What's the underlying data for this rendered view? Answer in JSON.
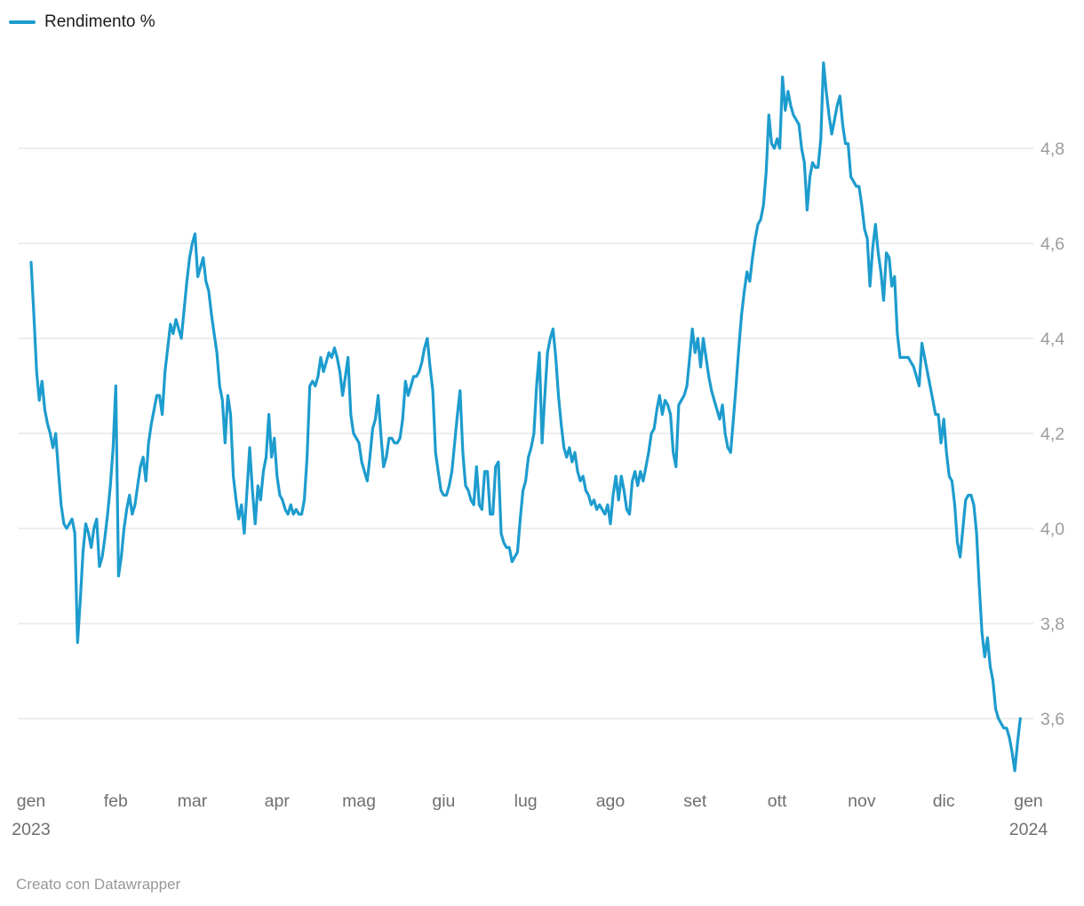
{
  "legend": {
    "label": "Rendimento %"
  },
  "footer": {
    "text": "Creato con Datawrapper"
  },
  "colors": {
    "line": "#1d9cce",
    "grid": "#e7e7e7",
    "y_label": "#9c9c9c",
    "x_label": "#6f6f6f",
    "footer_text": "#96989a",
    "legend_text": "#1a1a1a"
  },
  "chart_data": {
    "type": "line",
    "title": "",
    "series_name": "Rendimento %",
    "xlabel": "",
    "ylabel": "Rendimento %",
    "x_unit": "day of year, 2023 (1 = 1 gen 2023, 366 = 1 gen 2024)",
    "grid": "horizontal-only",
    "legend_position": "top-left",
    "ylim": [
      3.44,
      5.02
    ],
    "xlim": [
      1,
      373
    ],
    "y_ticks": [
      4.8,
      4.6,
      4.4,
      4.2,
      4.0,
      3.8,
      3.6
    ],
    "y_tick_labels": [
      "4,8",
      "4,6",
      "4,4",
      "4,2",
      "4,0",
      "3,8",
      "3,6"
    ],
    "x_ticks": [
      {
        "day": 1,
        "label": "gen",
        "sub": "2023"
      },
      {
        "day": 32,
        "label": "feb",
        "sub": ""
      },
      {
        "day": 60,
        "label": "mar",
        "sub": ""
      },
      {
        "day": 91,
        "label": "apr",
        "sub": ""
      },
      {
        "day": 121,
        "label": "mag",
        "sub": ""
      },
      {
        "day": 152,
        "label": "giu",
        "sub": ""
      },
      {
        "day": 182,
        "label": "lug",
        "sub": ""
      },
      {
        "day": 213,
        "label": "ago",
        "sub": ""
      },
      {
        "day": 244,
        "label": "set",
        "sub": ""
      },
      {
        "day": 274,
        "label": "ott",
        "sub": ""
      },
      {
        "day": 305,
        "label": "nov",
        "sub": ""
      },
      {
        "day": 335,
        "label": "dic",
        "sub": ""
      },
      {
        "day": 366,
        "label": "gen",
        "sub": "2024"
      }
    ],
    "points": [
      [
        1,
        4.56
      ],
      [
        2,
        4.45
      ],
      [
        3,
        4.33
      ],
      [
        4,
        4.27
      ],
      [
        5,
        4.31
      ],
      [
        6,
        4.25
      ],
      [
        7,
        4.22
      ],
      [
        8,
        4.2
      ],
      [
        9,
        4.17
      ],
      [
        10,
        4.2
      ],
      [
        11,
        4.12
      ],
      [
        12,
        4.05
      ],
      [
        13,
        4.01
      ],
      [
        14,
        4.0
      ],
      [
        15,
        4.01
      ],
      [
        16,
        4.02
      ],
      [
        17,
        3.99
      ],
      [
        18,
        3.76
      ],
      [
        19,
        3.85
      ],
      [
        20,
        3.95
      ],
      [
        21,
        4.01
      ],
      [
        22,
        3.99
      ],
      [
        23,
        3.96
      ],
      [
        24,
        4.0
      ],
      [
        25,
        4.02
      ],
      [
        26,
        3.92
      ],
      [
        27,
        3.94
      ],
      [
        28,
        3.98
      ],
      [
        29,
        4.03
      ],
      [
        30,
        4.09
      ],
      [
        31,
        4.17
      ],
      [
        32,
        4.3
      ],
      [
        33,
        3.9
      ],
      [
        34,
        3.94
      ],
      [
        35,
        4.0
      ],
      [
        36,
        4.04
      ],
      [
        37,
        4.07
      ],
      [
        38,
        4.03
      ],
      [
        39,
        4.05
      ],
      [
        40,
        4.09
      ],
      [
        41,
        4.13
      ],
      [
        42,
        4.15
      ],
      [
        43,
        4.1
      ],
      [
        44,
        4.18
      ],
      [
        45,
        4.22
      ],
      [
        46,
        4.25
      ],
      [
        47,
        4.28
      ],
      [
        48,
        4.28
      ],
      [
        49,
        4.24
      ],
      [
        50,
        4.33
      ],
      [
        51,
        4.38
      ],
      [
        52,
        4.43
      ],
      [
        53,
        4.41
      ],
      [
        54,
        4.44
      ],
      [
        55,
        4.42
      ],
      [
        56,
        4.4
      ],
      [
        57,
        4.46
      ],
      [
        58,
        4.52
      ],
      [
        59,
        4.57
      ],
      [
        60,
        4.6
      ],
      [
        61,
        4.62
      ],
      [
        62,
        4.53
      ],
      [
        63,
        4.55
      ],
      [
        64,
        4.57
      ],
      [
        65,
        4.52
      ],
      [
        66,
        4.5
      ],
      [
        67,
        4.45
      ],
      [
        68,
        4.41
      ],
      [
        69,
        4.37
      ],
      [
        70,
        4.3
      ],
      [
        71,
        4.27
      ],
      [
        72,
        4.18
      ],
      [
        73,
        4.28
      ],
      [
        74,
        4.24
      ],
      [
        75,
        4.11
      ],
      [
        76,
        4.06
      ],
      [
        77,
        4.02
      ],
      [
        78,
        4.05
      ],
      [
        79,
        3.99
      ],
      [
        80,
        4.08
      ],
      [
        81,
        4.17
      ],
      [
        82,
        4.08
      ],
      [
        83,
        4.01
      ],
      [
        84,
        4.09
      ],
      [
        85,
        4.06
      ],
      [
        86,
        4.12
      ],
      [
        87,
        4.15
      ],
      [
        88,
        4.24
      ],
      [
        89,
        4.15
      ],
      [
        90,
        4.19
      ],
      [
        91,
        4.11
      ],
      [
        92,
        4.07
      ],
      [
        93,
        4.06
      ],
      [
        94,
        4.04
      ],
      [
        95,
        4.03
      ],
      [
        96,
        4.05
      ],
      [
        97,
        4.03
      ],
      [
        98,
        4.04
      ],
      [
        99,
        4.03
      ],
      [
        100,
        4.03
      ],
      [
        101,
        4.06
      ],
      [
        102,
        4.15
      ],
      [
        103,
        4.3
      ],
      [
        104,
        4.31
      ],
      [
        105,
        4.3
      ],
      [
        106,
        4.32
      ],
      [
        107,
        4.36
      ],
      [
        108,
        4.33
      ],
      [
        109,
        4.35
      ],
      [
        110,
        4.37
      ],
      [
        111,
        4.36
      ],
      [
        112,
        4.38
      ],
      [
        113,
        4.36
      ],
      [
        114,
        4.33
      ],
      [
        115,
        4.28
      ],
      [
        116,
        4.32
      ],
      [
        117,
        4.36
      ],
      [
        118,
        4.24
      ],
      [
        119,
        4.2
      ],
      [
        120,
        4.19
      ],
      [
        121,
        4.18
      ],
      [
        122,
        4.14
      ],
      [
        123,
        4.12
      ],
      [
        124,
        4.1
      ],
      [
        125,
        4.15
      ],
      [
        126,
        4.21
      ],
      [
        127,
        4.23
      ],
      [
        128,
        4.28
      ],
      [
        129,
        4.2
      ],
      [
        130,
        4.13
      ],
      [
        131,
        4.15
      ],
      [
        132,
        4.19
      ],
      [
        133,
        4.19
      ],
      [
        134,
        4.18
      ],
      [
        135,
        4.18
      ],
      [
        136,
        4.19
      ],
      [
        137,
        4.23
      ],
      [
        138,
        4.31
      ],
      [
        139,
        4.28
      ],
      [
        140,
        4.3
      ],
      [
        141,
        4.32
      ],
      [
        142,
        4.32
      ],
      [
        143,
        4.33
      ],
      [
        144,
        4.35
      ],
      [
        145,
        4.38
      ],
      [
        146,
        4.4
      ],
      [
        147,
        4.34
      ],
      [
        148,
        4.29
      ],
      [
        149,
        4.16
      ],
      [
        150,
        4.12
      ],
      [
        151,
        4.08
      ],
      [
        152,
        4.07
      ],
      [
        153,
        4.07
      ],
      [
        154,
        4.09
      ],
      [
        155,
        4.12
      ],
      [
        156,
        4.18
      ],
      [
        157,
        4.24
      ],
      [
        158,
        4.29
      ],
      [
        159,
        4.16
      ],
      [
        160,
        4.09
      ],
      [
        161,
        4.08
      ],
      [
        162,
        4.06
      ],
      [
        163,
        4.05
      ],
      [
        164,
        4.13
      ],
      [
        165,
        4.05
      ],
      [
        166,
        4.04
      ],
      [
        167,
        4.12
      ],
      [
        168,
        4.12
      ],
      [
        169,
        4.03
      ],
      [
        170,
        4.03
      ],
      [
        171,
        4.13
      ],
      [
        172,
        4.14
      ],
      [
        173,
        3.99
      ],
      [
        174,
        3.97
      ],
      [
        175,
        3.96
      ],
      [
        176,
        3.96
      ],
      [
        177,
        3.93
      ],
      [
        178,
        3.94
      ],
      [
        179,
        3.95
      ],
      [
        180,
        4.02
      ],
      [
        181,
        4.08
      ],
      [
        182,
        4.1
      ],
      [
        183,
        4.15
      ],
      [
        184,
        4.17
      ],
      [
        185,
        4.2
      ],
      [
        186,
        4.3
      ],
      [
        187,
        4.37
      ],
      [
        188,
        4.18
      ],
      [
        189,
        4.28
      ],
      [
        190,
        4.37
      ],
      [
        191,
        4.4
      ],
      [
        192,
        4.42
      ],
      [
        193,
        4.36
      ],
      [
        194,
        4.28
      ],
      [
        195,
        4.22
      ],
      [
        196,
        4.17
      ],
      [
        197,
        4.15
      ],
      [
        198,
        4.17
      ],
      [
        199,
        4.14
      ],
      [
        200,
        4.16
      ],
      [
        201,
        4.12
      ],
      [
        202,
        4.1
      ],
      [
        203,
        4.11
      ],
      [
        204,
        4.08
      ],
      [
        205,
        4.07
      ],
      [
        206,
        4.05
      ],
      [
        207,
        4.06
      ],
      [
        208,
        4.04
      ],
      [
        209,
        4.05
      ],
      [
        210,
        4.04
      ],
      [
        211,
        4.03
      ],
      [
        212,
        4.05
      ],
      [
        213,
        4.01
      ],
      [
        214,
        4.07
      ],
      [
        215,
        4.11
      ],
      [
        216,
        4.06
      ],
      [
        217,
        4.11
      ],
      [
        218,
        4.08
      ],
      [
        219,
        4.04
      ],
      [
        220,
        4.03
      ],
      [
        221,
        4.1
      ],
      [
        222,
        4.12
      ],
      [
        223,
        4.09
      ],
      [
        224,
        4.12
      ],
      [
        225,
        4.1
      ],
      [
        226,
        4.13
      ],
      [
        227,
        4.16
      ],
      [
        228,
        4.2
      ],
      [
        229,
        4.21
      ],
      [
        230,
        4.25
      ],
      [
        231,
        4.28
      ],
      [
        232,
        4.24
      ],
      [
        233,
        4.27
      ],
      [
        234,
        4.26
      ],
      [
        235,
        4.24
      ],
      [
        236,
        4.16
      ],
      [
        237,
        4.13
      ],
      [
        238,
        4.26
      ],
      [
        239,
        4.27
      ],
      [
        240,
        4.28
      ],
      [
        241,
        4.3
      ],
      [
        242,
        4.36
      ],
      [
        243,
        4.42
      ],
      [
        244,
        4.37
      ],
      [
        245,
        4.4
      ],
      [
        246,
        4.34
      ],
      [
        247,
        4.4
      ],
      [
        248,
        4.36
      ],
      [
        249,
        4.32
      ],
      [
        250,
        4.29
      ],
      [
        251,
        4.27
      ],
      [
        252,
        4.25
      ],
      [
        253,
        4.23
      ],
      [
        254,
        4.26
      ],
      [
        255,
        4.2
      ],
      [
        256,
        4.17
      ],
      [
        257,
        4.16
      ],
      [
        258,
        4.23
      ],
      [
        259,
        4.3
      ],
      [
        260,
        4.38
      ],
      [
        261,
        4.45
      ],
      [
        262,
        4.5
      ],
      [
        263,
        4.54
      ],
      [
        264,
        4.52
      ],
      [
        265,
        4.57
      ],
      [
        266,
        4.61
      ],
      [
        267,
        4.64
      ],
      [
        268,
        4.65
      ],
      [
        269,
        4.68
      ],
      [
        270,
        4.75
      ],
      [
        271,
        4.87
      ],
      [
        272,
        4.81
      ],
      [
        273,
        4.8
      ],
      [
        274,
        4.82
      ],
      [
        275,
        4.8
      ],
      [
        276,
        4.95
      ],
      [
        277,
        4.88
      ],
      [
        278,
        4.92
      ],
      [
        279,
        4.89
      ],
      [
        280,
        4.87
      ],
      [
        281,
        4.86
      ],
      [
        282,
        4.85
      ],
      [
        283,
        4.8
      ],
      [
        284,
        4.77
      ],
      [
        285,
        4.67
      ],
      [
        286,
        4.74
      ],
      [
        287,
        4.77
      ],
      [
        288,
        4.76
      ],
      [
        289,
        4.76
      ],
      [
        290,
        4.82
      ],
      [
        291,
        4.98
      ],
      [
        292,
        4.92
      ],
      [
        293,
        4.87
      ],
      [
        294,
        4.83
      ],
      [
        295,
        4.86
      ],
      [
        296,
        4.89
      ],
      [
        297,
        4.91
      ],
      [
        298,
        4.85
      ],
      [
        299,
        4.81
      ],
      [
        300,
        4.81
      ],
      [
        301,
        4.74
      ],
      [
        302,
        4.73
      ],
      [
        303,
        4.72
      ],
      [
        304,
        4.72
      ],
      [
        305,
        4.68
      ],
      [
        306,
        4.63
      ],
      [
        307,
        4.61
      ],
      [
        308,
        4.51
      ],
      [
        309,
        4.59
      ],
      [
        310,
        4.64
      ],
      [
        311,
        4.58
      ],
      [
        312,
        4.54
      ],
      [
        313,
        4.48
      ],
      [
        314,
        4.58
      ],
      [
        315,
        4.57
      ],
      [
        316,
        4.51
      ],
      [
        317,
        4.53
      ],
      [
        318,
        4.41
      ],
      [
        319,
        4.36
      ],
      [
        320,
        4.36
      ],
      [
        321,
        4.36
      ],
      [
        322,
        4.36
      ],
      [
        323,
        4.35
      ],
      [
        324,
        4.34
      ],
      [
        325,
        4.32
      ],
      [
        326,
        4.3
      ],
      [
        327,
        4.39
      ],
      [
        328,
        4.36
      ],
      [
        329,
        4.33
      ],
      [
        330,
        4.3
      ],
      [
        331,
        4.27
      ],
      [
        332,
        4.24
      ],
      [
        333,
        4.24
      ],
      [
        334,
        4.18
      ],
      [
        335,
        4.23
      ],
      [
        336,
        4.16
      ],
      [
        337,
        4.11
      ],
      [
        338,
        4.1
      ],
      [
        339,
        4.05
      ],
      [
        340,
        3.97
      ],
      [
        341,
        3.94
      ],
      [
        342,
        4.0
      ],
      [
        343,
        4.06
      ],
      [
        344,
        4.07
      ],
      [
        345,
        4.07
      ],
      [
        346,
        4.05
      ],
      [
        347,
        3.99
      ],
      [
        348,
        3.88
      ],
      [
        349,
        3.78
      ],
      [
        350,
        3.73
      ],
      [
        351,
        3.77
      ],
      [
        352,
        3.71
      ],
      [
        353,
        3.68
      ],
      [
        354,
        3.62
      ],
      [
        355,
        3.6
      ],
      [
        356,
        3.59
      ],
      [
        357,
        3.58
      ],
      [
        358,
        3.58
      ],
      [
        359,
        3.56
      ],
      [
        360,
        3.53
      ],
      [
        361,
        3.49
      ],
      [
        362,
        3.55
      ],
      [
        363,
        3.6
      ]
    ]
  }
}
